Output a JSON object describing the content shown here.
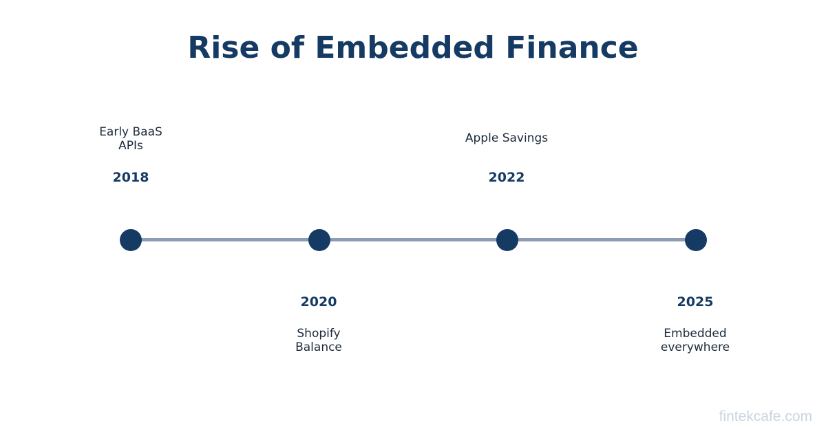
{
  "title": "Rise of Embedded Finance",
  "events": [
    {
      "year": "2018",
      "label": "Early BaaS\nAPIs",
      "position": "above"
    },
    {
      "year": "2020",
      "label": "Shopify\nBalance",
      "position": "below"
    },
    {
      "year": "2022",
      "label": "Apple Savings",
      "position": "above"
    },
    {
      "year": "2025",
      "label": "Embedded\neverywhere",
      "position": "below"
    }
  ],
  "watermark": "fintekcafe.com",
  "colors": {
    "primary": "#153a63",
    "line": "#8c9db2",
    "text": "#1b2a3b",
    "watermark": "#c9d3df"
  }
}
